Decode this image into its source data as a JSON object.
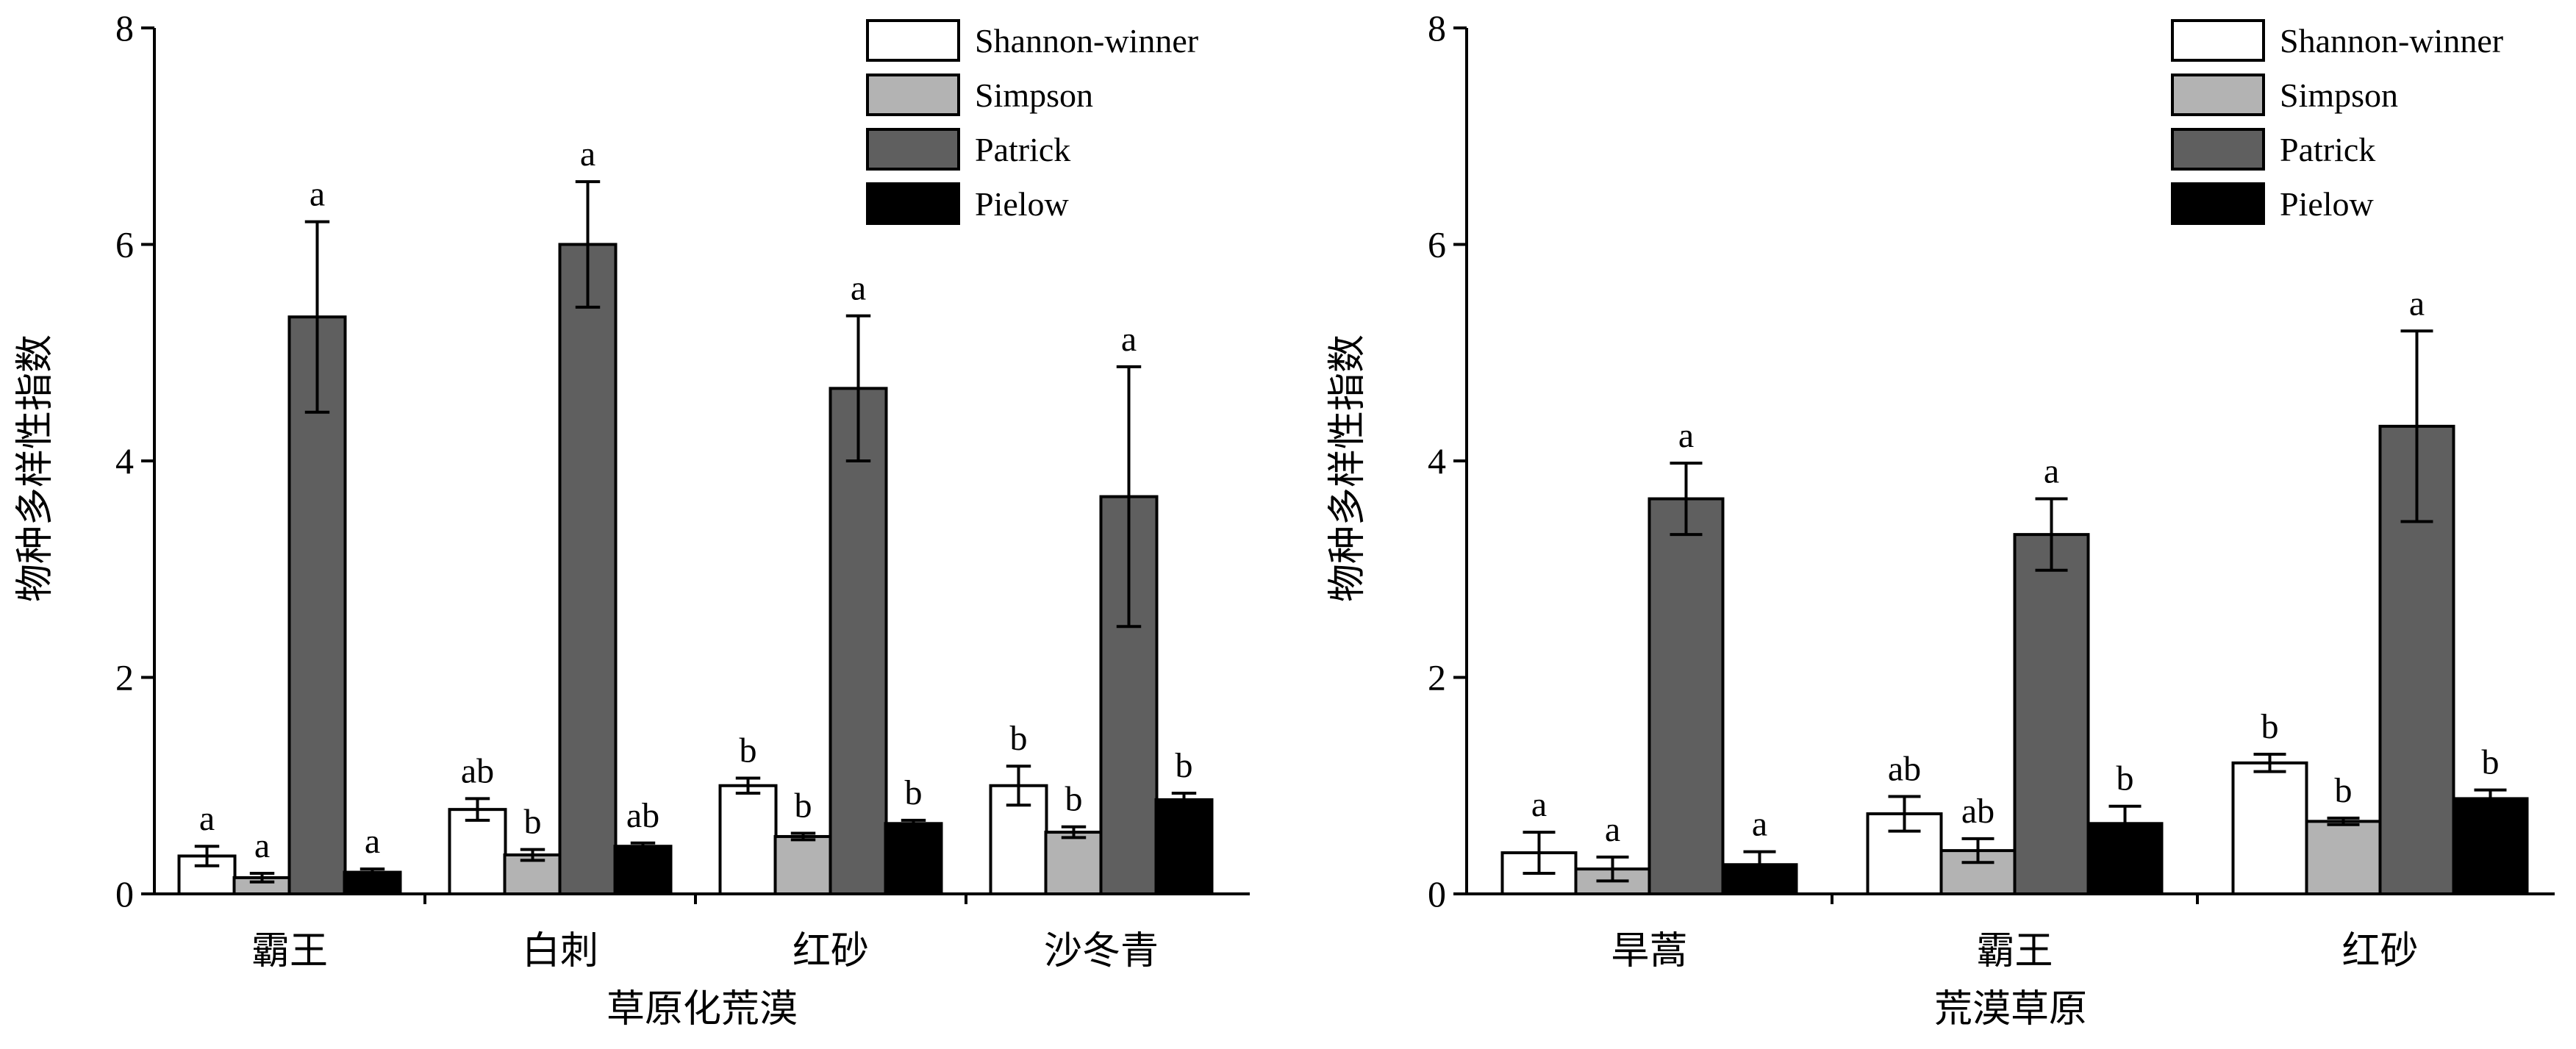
{
  "chart_data": [
    {
      "type": "bar",
      "ylabel": "物种多样性指数",
      "xlabel": "草原化荒漠",
      "ylim": [
        0,
        8
      ],
      "yticks": [
        "0",
        "2",
        "4",
        "6",
        "8"
      ],
      "categories": [
        "霸王",
        "白刺",
        "红砂",
        "沙冬青"
      ],
      "legend_position": "top-right",
      "series": [
        {
          "name": "Shannon-winner",
          "color": "#ffffff",
          "values": [
            0.35,
            0.78,
            1.0,
            1.0
          ],
          "errors": [
            0.09,
            0.1,
            0.07,
            0.18
          ],
          "letters": [
            "a",
            "ab",
            "b",
            "b"
          ]
        },
        {
          "name": "Simpson",
          "color": "#b3b3b3",
          "values": [
            0.15,
            0.36,
            0.53,
            0.57
          ],
          "errors": [
            0.04,
            0.05,
            0.03,
            0.05
          ],
          "letters": [
            "a",
            "b",
            "b",
            "b"
          ]
        },
        {
          "name": "Patrick",
          "color": "#5f5f5f",
          "values": [
            5.33,
            6.0,
            4.67,
            3.67
          ],
          "errors": [
            0.88,
            0.58,
            0.67,
            1.2
          ],
          "letters": [
            "a",
            "a",
            "a",
            "a"
          ]
        },
        {
          "name": "Pielow",
          "color": "#000000",
          "values": [
            0.2,
            0.44,
            0.65,
            0.87
          ],
          "errors": [
            0.03,
            0.03,
            0.03,
            0.06
          ],
          "letters": [
            "a",
            "ab",
            "b",
            "b"
          ]
        }
      ]
    },
    {
      "type": "bar",
      "ylabel": "物种多样性指数",
      "xlabel": "荒漠草原",
      "ylim": [
        0,
        8
      ],
      "yticks": [
        "0",
        "2",
        "4",
        "6",
        "8"
      ],
      "categories": [
        "旱蒿",
        "霸王",
        "红砂"
      ],
      "legend_position": "top-right",
      "series": [
        {
          "name": "Shannon-winner",
          "color": "#ffffff",
          "values": [
            0.38,
            0.74,
            1.21
          ],
          "errors": [
            0.19,
            0.16,
            0.08
          ],
          "letters": [
            "a",
            "ab",
            "b"
          ]
        },
        {
          "name": "Simpson",
          "color": "#b3b3b3",
          "values": [
            0.23,
            0.4,
            0.67
          ],
          "errors": [
            0.11,
            0.11,
            0.03
          ],
          "letters": [
            "a",
            "ab",
            "b"
          ]
        },
        {
          "name": "Patrick",
          "color": "#5f5f5f",
          "values": [
            3.65,
            3.32,
            4.32
          ],
          "errors": [
            0.33,
            0.33,
            0.88
          ],
          "letters": [
            "a",
            "a",
            "a"
          ]
        },
        {
          "name": "Pielow",
          "color": "#000000",
          "values": [
            0.27,
            0.65,
            0.88
          ],
          "errors": [
            0.12,
            0.16,
            0.08
          ],
          "letters": [
            "a",
            "b",
            "b"
          ]
        }
      ]
    }
  ]
}
